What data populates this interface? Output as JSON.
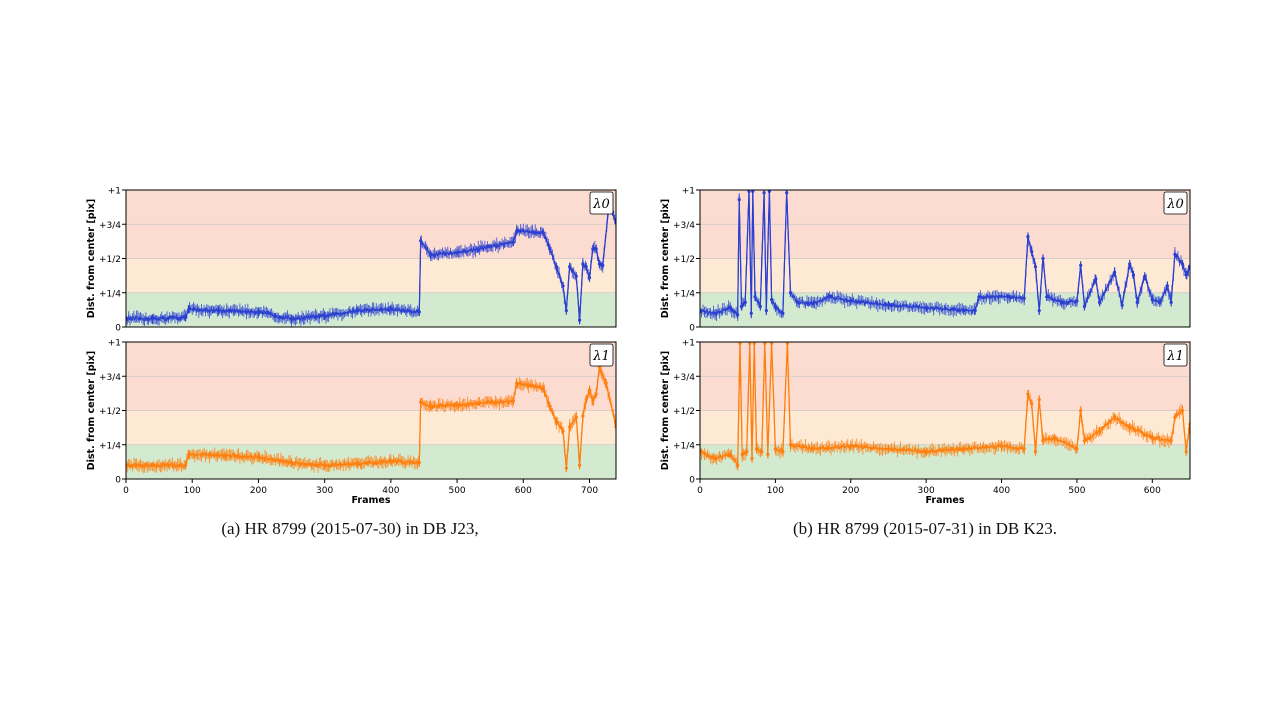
{
  "captions": {
    "a": "(a) HR 8799 (2015-07-30) in DB J23,",
    "b": "(b) HR 8799 (2015-07-31) in DB K23."
  },
  "colors": {
    "blue": "#2b3fd0",
    "orange": "#ff7f0e",
    "zone_green": "#d3ead0",
    "zone_yellow": "#fde9d4",
    "zone_red": "#fcdcd1",
    "grid": "#c8c8c8"
  },
  "chart_data": [
    {
      "type": "line",
      "panel": "(a) top",
      "xlabel": "",
      "ylabel": "Dist. from center [pix]",
      "annotation": "λ0",
      "xlim": [
        0,
        740
      ],
      "ylim": [
        0,
        1
      ],
      "xticks": [],
      "yticks": [
        {
          "v": 0,
          "label": "0"
        },
        {
          "v": 0.25,
          "label": "+1/4"
        },
        {
          "v": 0.5,
          "label": "+1/2"
        },
        {
          "v": 0.75,
          "label": "+3/4"
        },
        {
          "v": 1,
          "label": "+1"
        }
      ],
      "grid": "horizontal",
      "error_bars": true,
      "series": [
        {
          "color": "#2b3fd0",
          "points": [
            [
              0,
              0.06
            ],
            [
              40,
              0.06
            ],
            [
              90,
              0.07
            ],
            [
              95,
              0.13
            ],
            [
              140,
              0.12
            ],
            [
              200,
              0.11
            ],
            [
              250,
              0.06
            ],
            [
              300,
              0.08
            ],
            [
              350,
              0.12
            ],
            [
              400,
              0.13
            ],
            [
              443,
              0.11
            ],
            [
              445,
              0.63
            ],
            [
              460,
              0.53
            ],
            [
              500,
              0.54
            ],
            [
              585,
              0.62
            ],
            [
              590,
              0.7
            ],
            [
              630,
              0.69
            ],
            [
              640,
              0.57
            ],
            [
              650,
              0.44
            ],
            [
              660,
              0.3
            ],
            [
              665,
              0.12
            ],
            [
              670,
              0.44
            ],
            [
              680,
              0.37
            ],
            [
              685,
              0.05
            ],
            [
              690,
              0.46
            ],
            [
              695,
              0.44
            ],
            [
              700,
              0.36
            ],
            [
              705,
              0.57
            ],
            [
              710,
              0.57
            ],
            [
              715,
              0.46
            ],
            [
              720,
              0.45
            ],
            [
              730,
              0.92
            ],
            [
              735,
              0.84
            ],
            [
              740,
              0.76
            ]
          ]
        }
      ]
    },
    {
      "type": "line",
      "panel": "(a) bottom",
      "xlabel": "Frames",
      "ylabel": "Dist. from center [pix]",
      "annotation": "λ1",
      "xlim": [
        0,
        740
      ],
      "ylim": [
        0,
        1
      ],
      "xticks": [
        {
          "v": 0,
          "label": "0"
        },
        {
          "v": 100,
          "label": "100"
        },
        {
          "v": 200,
          "label": "200"
        },
        {
          "v": 300,
          "label": "300"
        },
        {
          "v": 400,
          "label": "400"
        },
        {
          "v": 500,
          "label": "500"
        },
        {
          "v": 600,
          "label": "600"
        },
        {
          "v": 700,
          "label": "700"
        }
      ],
      "yticks": [
        {
          "v": 0,
          "label": "0"
        },
        {
          "v": 0.25,
          "label": "+1/4"
        },
        {
          "v": 0.5,
          "label": "+1/2"
        },
        {
          "v": 0.75,
          "label": "+3/4"
        },
        {
          "v": 1,
          "label": "+1"
        }
      ],
      "grid": "horizontal",
      "error_bars": true,
      "series": [
        {
          "color": "#ff7f0e",
          "points": [
            [
              0,
              0.1
            ],
            [
              90,
              0.1
            ],
            [
              95,
              0.18
            ],
            [
              150,
              0.17
            ],
            [
              200,
              0.16
            ],
            [
              250,
              0.12
            ],
            [
              300,
              0.1
            ],
            [
              350,
              0.11
            ],
            [
              400,
              0.13
            ],
            [
              443,
              0.12
            ],
            [
              445,
              0.56
            ],
            [
              460,
              0.53
            ],
            [
              500,
              0.54
            ],
            [
              585,
              0.57
            ],
            [
              590,
              0.7
            ],
            [
              630,
              0.66
            ],
            [
              640,
              0.53
            ],
            [
              650,
              0.42
            ],
            [
              660,
              0.35
            ],
            [
              665,
              0.08
            ],
            [
              670,
              0.38
            ],
            [
              680,
              0.45
            ],
            [
              685,
              0.1
            ],
            [
              690,
              0.46
            ],
            [
              695,
              0.58
            ],
            [
              700,
              0.65
            ],
            [
              705,
              0.57
            ],
            [
              710,
              0.62
            ],
            [
              715,
              0.82
            ],
            [
              725,
              0.7
            ],
            [
              740,
              0.38
            ]
          ]
        }
      ]
    },
    {
      "type": "line",
      "panel": "(b) top",
      "xlabel": "",
      "ylabel": "Dist. from center [pix]",
      "annotation": "λ0",
      "xlim": [
        0,
        650
      ],
      "ylim": [
        0,
        1
      ],
      "xticks": [],
      "yticks": [
        {
          "v": 0,
          "label": "0"
        },
        {
          "v": 0.25,
          "label": "+1/4"
        },
        {
          "v": 0.5,
          "label": "+1/2"
        },
        {
          "v": 0.75,
          "label": "+3/4"
        },
        {
          "v": 1,
          "label": "+1"
        }
      ],
      "grid": "horizontal",
      "error_bars": true,
      "series": [
        {
          "color": "#2b3fd0",
          "points": [
            [
              0,
              0.12
            ],
            [
              20,
              0.1
            ],
            [
              40,
              0.14
            ],
            [
              50,
              0.09
            ],
            [
              52,
              0.93
            ],
            [
              55,
              0.15
            ],
            [
              60,
              0.18
            ],
            [
              65,
              0.99
            ],
            [
              68,
              0.1
            ],
            [
              70,
              0.99
            ],
            [
              73,
              0.22
            ],
            [
              80,
              0.15
            ],
            [
              85,
              0.98
            ],
            [
              88,
              0.12
            ],
            [
              92,
              0.99
            ],
            [
              95,
              0.2
            ],
            [
              100,
              0.15
            ],
            [
              110,
              0.1
            ],
            [
              115,
              0.98
            ],
            [
              120,
              0.25
            ],
            [
              130,
              0.18
            ],
            [
              150,
              0.17
            ],
            [
              170,
              0.22
            ],
            [
              200,
              0.19
            ],
            [
              250,
              0.16
            ],
            [
              300,
              0.14
            ],
            [
              350,
              0.12
            ],
            [
              365,
              0.12
            ],
            [
              370,
              0.22
            ],
            [
              410,
              0.22
            ],
            [
              430,
              0.21
            ],
            [
              435,
              0.66
            ],
            [
              440,
              0.55
            ],
            [
              445,
              0.44
            ],
            [
              450,
              0.12
            ],
            [
              455,
              0.5
            ],
            [
              460,
              0.22
            ],
            [
              480,
              0.18
            ],
            [
              500,
              0.19
            ],
            [
              505,
              0.45
            ],
            [
              510,
              0.15
            ],
            [
              525,
              0.35
            ],
            [
              530,
              0.18
            ],
            [
              550,
              0.4
            ],
            [
              560,
              0.16
            ],
            [
              570,
              0.46
            ],
            [
              575,
              0.38
            ],
            [
              580,
              0.18
            ],
            [
              590,
              0.37
            ],
            [
              600,
              0.2
            ],
            [
              610,
              0.18
            ],
            [
              620,
              0.3
            ],
            [
              625,
              0.18
            ],
            [
              630,
              0.53
            ],
            [
              640,
              0.46
            ],
            [
              645,
              0.38
            ],
            [
              650,
              0.44
            ]
          ]
        }
      ]
    },
    {
      "type": "line",
      "panel": "(b) bottom",
      "xlabel": "Frames",
      "ylabel": "Dist. from center [pix]",
      "annotation": "λ1",
      "xlim": [
        0,
        650
      ],
      "ylim": [
        0,
        1
      ],
      "xticks": [
        {
          "v": 0,
          "label": "0"
        },
        {
          "v": 100,
          "label": "100"
        },
        {
          "v": 200,
          "label": "200"
        },
        {
          "v": 300,
          "label": "300"
        },
        {
          "v": 400,
          "label": "400"
        },
        {
          "v": 500,
          "label": "500"
        },
        {
          "v": 600,
          "label": "600"
        }
      ],
      "yticks": [
        {
          "v": 0,
          "label": "0"
        },
        {
          "v": 0.25,
          "label": "+1/4"
        },
        {
          "v": 0.5,
          "label": "+1/2"
        },
        {
          "v": 0.75,
          "label": "+3/4"
        },
        {
          "v": 1,
          "label": "+1"
        }
      ],
      "grid": "horizontal",
      "error_bars": true,
      "series": [
        {
          "color": "#ff7f0e",
          "points": [
            [
              0,
              0.2
            ],
            [
              20,
              0.15
            ],
            [
              40,
              0.18
            ],
            [
              50,
              0.1
            ],
            [
              53,
              0.99
            ],
            [
              56,
              0.18
            ],
            [
              62,
              0.2
            ],
            [
              66,
              0.99
            ],
            [
              69,
              0.15
            ],
            [
              72,
              0.99
            ],
            [
              75,
              0.22
            ],
            [
              82,
              0.2
            ],
            [
              86,
              0.99
            ],
            [
              90,
              0.18
            ],
            [
              95,
              0.99
            ],
            [
              100,
              0.22
            ],
            [
              110,
              0.2
            ],
            [
              116,
              0.99
            ],
            [
              120,
              0.25
            ],
            [
              150,
              0.22
            ],
            [
              200,
              0.24
            ],
            [
              250,
              0.22
            ],
            [
              300,
              0.2
            ],
            [
              350,
              0.22
            ],
            [
              400,
              0.24
            ],
            [
              430,
              0.22
            ],
            [
              435,
              0.62
            ],
            [
              440,
              0.55
            ],
            [
              445,
              0.2
            ],
            [
              450,
              0.58
            ],
            [
              455,
              0.28
            ],
            [
              470,
              0.3
            ],
            [
              500,
              0.22
            ],
            [
              505,
              0.5
            ],
            [
              510,
              0.28
            ],
            [
              530,
              0.35
            ],
            [
              550,
              0.45
            ],
            [
              570,
              0.38
            ],
            [
              600,
              0.3
            ],
            [
              625,
              0.28
            ],
            [
              630,
              0.45
            ],
            [
              640,
              0.5
            ],
            [
              645,
              0.2
            ],
            [
              650,
              0.4
            ]
          ]
        }
      ]
    }
  ]
}
